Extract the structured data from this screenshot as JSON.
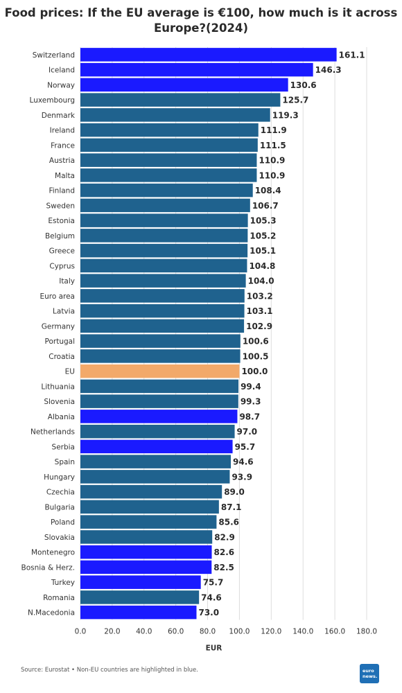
{
  "title": "Food prices: If the EU average is €100, how much is it across Europe?(2024)",
  "footer": {
    "source": "Source: Eurostat • Non-EU countries are highlighted in blue.",
    "logo_line1": "euro",
    "logo_line2": "news."
  },
  "colors": {
    "eu_member": "#1f628e",
    "non_eu": "#1a1aff",
    "eu_average": "#f2a96a",
    "grid": "#dddddd"
  },
  "chart_data": {
    "type": "bar",
    "orientation": "horizontal",
    "title": "Food prices: If the EU average is €100, how much is it across Europe?(2024)",
    "xlabel": "EUR",
    "ylabel": "",
    "xlim": [
      0,
      180
    ],
    "xticks": [
      "0.0",
      "20.0",
      "40.0",
      "60.0",
      "80.0",
      "100.0",
      "120.0",
      "140.0",
      "160.0",
      "180.0"
    ],
    "grid": "vertical",
    "categories": [
      "Switzerland",
      "Iceland",
      "Norway",
      "Luxembourg",
      "Denmark",
      "Ireland",
      "France",
      "Austria",
      "Malta",
      "Finland",
      "Sweden",
      "Estonia",
      "Belgium",
      "Greece",
      "Cyprus",
      "Italy",
      "Euro area",
      "Latvia",
      "Germany",
      "Portugal",
      "Croatia",
      "EU",
      "Lithuania",
      "Slovenia",
      "Albania",
      "Netherlands",
      "Serbia",
      "Spain",
      "Hungary",
      "Czechia",
      "Bulgaria",
      "Poland",
      "Slovakia",
      "Montenegro",
      "Bosnia & Herz.",
      "Turkey",
      "Romania",
      "N.Macedonia"
    ],
    "values": [
      161.1,
      146.3,
      130.6,
      125.7,
      119.3,
      111.9,
      111.5,
      110.9,
      110.9,
      108.4,
      106.7,
      105.3,
      105.2,
      105.1,
      104.8,
      104.0,
      103.2,
      103.1,
      102.9,
      100.6,
      100.5,
      100.0,
      99.4,
      99.3,
      98.7,
      97.0,
      95.7,
      94.6,
      93.9,
      89.0,
      87.1,
      85.6,
      82.9,
      82.6,
      82.5,
      75.7,
      74.6,
      73.0
    ],
    "value_labels": [
      "161.1",
      "146.3",
      "130.6",
      "125.7",
      "119.3",
      "111.9",
      "111.5",
      "110.9",
      "110.9",
      "108.4",
      "106.7",
      "105.3",
      "105.2",
      "105.1",
      "104.8",
      "104.0",
      "103.2",
      "103.1",
      "102.9",
      "100.6",
      "100.5",
      "100.0",
      "99.4",
      "99.3",
      "98.7",
      "97.0",
      "95.7",
      "94.6",
      "93.9",
      "89.0",
      "87.1",
      "85.6",
      "82.9",
      "82.6",
      "82.5",
      "75.7",
      "74.6",
      "73.0"
    ],
    "groups": [
      "non_eu",
      "non_eu",
      "non_eu",
      "eu_member",
      "eu_member",
      "eu_member",
      "eu_member",
      "eu_member",
      "eu_member",
      "eu_member",
      "eu_member",
      "eu_member",
      "eu_member",
      "eu_member",
      "eu_member",
      "eu_member",
      "eu_member",
      "eu_member",
      "eu_member",
      "eu_member",
      "eu_member",
      "eu_average",
      "eu_member",
      "eu_member",
      "non_eu",
      "eu_member",
      "non_eu",
      "eu_member",
      "eu_member",
      "eu_member",
      "eu_member",
      "eu_member",
      "eu_member",
      "non_eu",
      "non_eu",
      "non_eu",
      "eu_member",
      "non_eu"
    ]
  }
}
